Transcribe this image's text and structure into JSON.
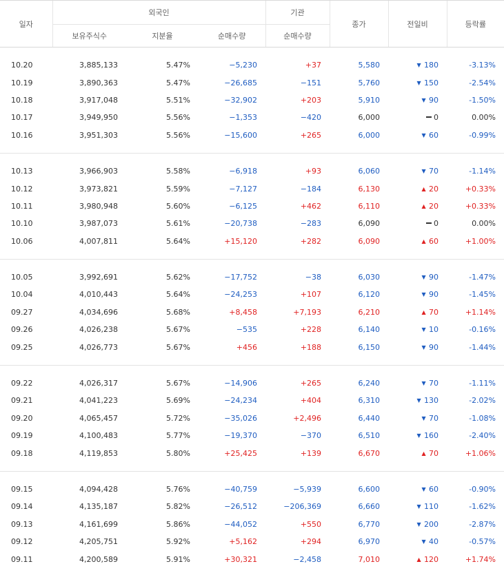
{
  "headers": {
    "date": "일자",
    "foreigner": "외국인",
    "institution": "기관",
    "holdings": "보유주식수",
    "ratio": "지분율",
    "foreign_net": "순매수량",
    "inst_net": "순매수량",
    "close": "종가",
    "change": "전일비",
    "rate": "등락률"
  },
  "colors": {
    "up": "#e02222",
    "down": "#1f5dc1",
    "flat": "#333333"
  },
  "groups": [
    [
      {
        "date": "10.20",
        "holdings": "3,885,133",
        "ratio": "5.47%",
        "fnet": "−5,230",
        "inet": "+37",
        "close": "5,580",
        "dir": "down",
        "chg": "180",
        "rate": "-3.13%"
      },
      {
        "date": "10.19",
        "holdings": "3,890,363",
        "ratio": "5.47%",
        "fnet": "−26,685",
        "inet": "−151",
        "close": "5,760",
        "dir": "down",
        "chg": "150",
        "rate": "-2.54%"
      },
      {
        "date": "10.18",
        "holdings": "3,917,048",
        "ratio": "5.51%",
        "fnet": "−32,902",
        "inet": "+203",
        "close": "5,910",
        "dir": "down",
        "chg": "90",
        "rate": "-1.50%"
      },
      {
        "date": "10.17",
        "holdings": "3,949,950",
        "ratio": "5.56%",
        "fnet": "−1,353",
        "inet": "−420",
        "close": "6,000",
        "dir": "flat",
        "chg": "0",
        "rate": "0.00%"
      },
      {
        "date": "10.16",
        "holdings": "3,951,303",
        "ratio": "5.56%",
        "fnet": "−15,600",
        "inet": "+265",
        "close": "6,000",
        "dir": "down",
        "chg": "60",
        "rate": "-0.99%"
      }
    ],
    [
      {
        "date": "10.13",
        "holdings": "3,966,903",
        "ratio": "5.58%",
        "fnet": "−6,918",
        "inet": "+93",
        "close": "6,060",
        "dir": "down",
        "chg": "70",
        "rate": "-1.14%"
      },
      {
        "date": "10.12",
        "holdings": "3,973,821",
        "ratio": "5.59%",
        "fnet": "−7,127",
        "inet": "−184",
        "close": "6,130",
        "dir": "up",
        "chg": "20",
        "rate": "+0.33%"
      },
      {
        "date": "10.11",
        "holdings": "3,980,948",
        "ratio": "5.60%",
        "fnet": "−6,125",
        "inet": "+462",
        "close": "6,110",
        "dir": "up",
        "chg": "20",
        "rate": "+0.33%"
      },
      {
        "date": "10.10",
        "holdings": "3,987,073",
        "ratio": "5.61%",
        "fnet": "−20,738",
        "inet": "−283",
        "close": "6,090",
        "dir": "flat",
        "chg": "0",
        "rate": "0.00%"
      },
      {
        "date": "10.06",
        "holdings": "4,007,811",
        "ratio": "5.64%",
        "fnet": "+15,120",
        "inet": "+282",
        "close": "6,090",
        "dir": "up",
        "chg": "60",
        "rate": "+1.00%"
      }
    ],
    [
      {
        "date": "10.05",
        "holdings": "3,992,691",
        "ratio": "5.62%",
        "fnet": "−17,752",
        "inet": "−38",
        "close": "6,030",
        "dir": "down",
        "chg": "90",
        "rate": "-1.47%"
      },
      {
        "date": "10.04",
        "holdings": "4,010,443",
        "ratio": "5.64%",
        "fnet": "−24,253",
        "inet": "+107",
        "close": "6,120",
        "dir": "down",
        "chg": "90",
        "rate": "-1.45%"
      },
      {
        "date": "09.27",
        "holdings": "4,034,696",
        "ratio": "5.68%",
        "fnet": "+8,458",
        "inet": "+7,193",
        "close": "6,210",
        "dir": "up",
        "chg": "70",
        "rate": "+1.14%"
      },
      {
        "date": "09.26",
        "holdings": "4,026,238",
        "ratio": "5.67%",
        "fnet": "−535",
        "inet": "+228",
        "close": "6,140",
        "dir": "down",
        "chg": "10",
        "rate": "-0.16%"
      },
      {
        "date": "09.25",
        "holdings": "4,026,773",
        "ratio": "5.67%",
        "fnet": "+456",
        "inet": "+188",
        "close": "6,150",
        "dir": "down",
        "chg": "90",
        "rate": "-1.44%"
      }
    ],
    [
      {
        "date": "09.22",
        "holdings": "4,026,317",
        "ratio": "5.67%",
        "fnet": "−14,906",
        "inet": "+265",
        "close": "6,240",
        "dir": "down",
        "chg": "70",
        "rate": "-1.11%"
      },
      {
        "date": "09.21",
        "holdings": "4,041,223",
        "ratio": "5.69%",
        "fnet": "−24,234",
        "inet": "+404",
        "close": "6,310",
        "dir": "down",
        "chg": "130",
        "rate": "-2.02%"
      },
      {
        "date": "09.20",
        "holdings": "4,065,457",
        "ratio": "5.72%",
        "fnet": "−35,026",
        "inet": "+2,496",
        "close": "6,440",
        "dir": "down",
        "chg": "70",
        "rate": "-1.08%"
      },
      {
        "date": "09.19",
        "holdings": "4,100,483",
        "ratio": "5.77%",
        "fnet": "−19,370",
        "inet": "−370",
        "close": "6,510",
        "dir": "down",
        "chg": "160",
        "rate": "-2.40%"
      },
      {
        "date": "09.18",
        "holdings": "4,119,853",
        "ratio": "5.80%",
        "fnet": "+25,425",
        "inet": "+139",
        "close": "6,670",
        "dir": "up",
        "chg": "70",
        "rate": "+1.06%"
      }
    ],
    [
      {
        "date": "09.15",
        "holdings": "4,094,428",
        "ratio": "5.76%",
        "fnet": "−40,759",
        "inet": "−5,939",
        "close": "6,600",
        "dir": "down",
        "chg": "60",
        "rate": "-0.90%"
      },
      {
        "date": "09.14",
        "holdings": "4,135,187",
        "ratio": "5.82%",
        "fnet": "−26,512",
        "inet": "−206,369",
        "close": "6,660",
        "dir": "down",
        "chg": "110",
        "rate": "-1.62%"
      },
      {
        "date": "09.13",
        "holdings": "4,161,699",
        "ratio": "5.86%",
        "fnet": "−44,052",
        "inet": "+550",
        "close": "6,770",
        "dir": "down",
        "chg": "200",
        "rate": "-2.87%"
      },
      {
        "date": "09.12",
        "holdings": "4,205,751",
        "ratio": "5.92%",
        "fnet": "+5,162",
        "inet": "+294",
        "close": "6,970",
        "dir": "down",
        "chg": "40",
        "rate": "-0.57%"
      },
      {
        "date": "09.11",
        "holdings": "4,200,589",
        "ratio": "5.91%",
        "fnet": "+30,321",
        "inet": "−2,458",
        "close": "7,010",
        "dir": "up",
        "chg": "120",
        "rate": "+1.74%"
      }
    ]
  ]
}
